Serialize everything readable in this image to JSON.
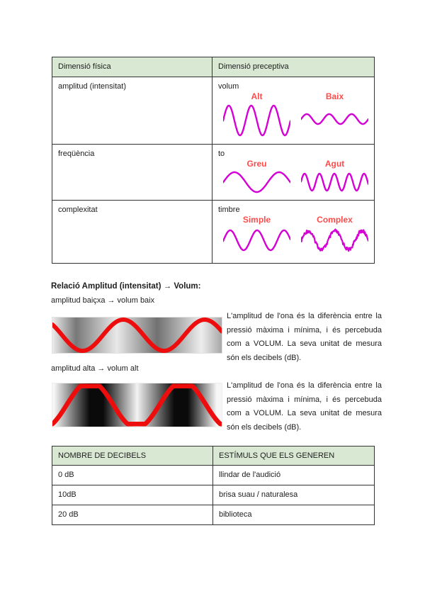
{
  "colors": {
    "table_header_bg": "#d9e8d3",
    "table_border": "#333333",
    "wave": "#d400d4",
    "wave_label": "#fb4b4b",
    "pressure_wave": "#ee0d0d"
  },
  "dimensions_table": {
    "headers": [
      "Dimensió física",
      "Dimensió preceptiva"
    ],
    "rows": [
      {
        "physical": "amplitud (intensitat)",
        "perceptive": "volum",
        "wave_labels": [
          "Alt",
          "Baix"
        ]
      },
      {
        "physical": "freqüència",
        "perceptive": "to",
        "wave_labels": [
          "Greu",
          "Agut"
        ]
      },
      {
        "physical": "complexitat",
        "perceptive": "timbre",
        "wave_labels": [
          "Simple",
          "Complex"
        ]
      }
    ]
  },
  "relation_section": {
    "title": "Relació Amplitud (intensitat) →  Volum:",
    "low_amplitude_label": "amplitud baiçxa →  volum baix",
    "high_amplitude_label": "amplitud alta → volum alt",
    "paragraph": "L'amplitud de l'ona és la diferència entre la pressió màxima i mínima, i és percebuda com a VOLUM. La seva unitat de mesura són els decibels (dB)."
  },
  "decibels_table": {
    "headers": [
      "NOMBRE DE DECIBELS",
      "ESTÍMULS QUE ELS GENEREN"
    ],
    "rows": [
      {
        "db": "0 dB",
        "stimulus": "llindar de l'audició"
      },
      {
        "db": "10dB",
        "stimulus": "brisa suau / naturalesa"
      },
      {
        "db": "20 dB",
        "stimulus": "biblioteca"
      }
    ]
  }
}
